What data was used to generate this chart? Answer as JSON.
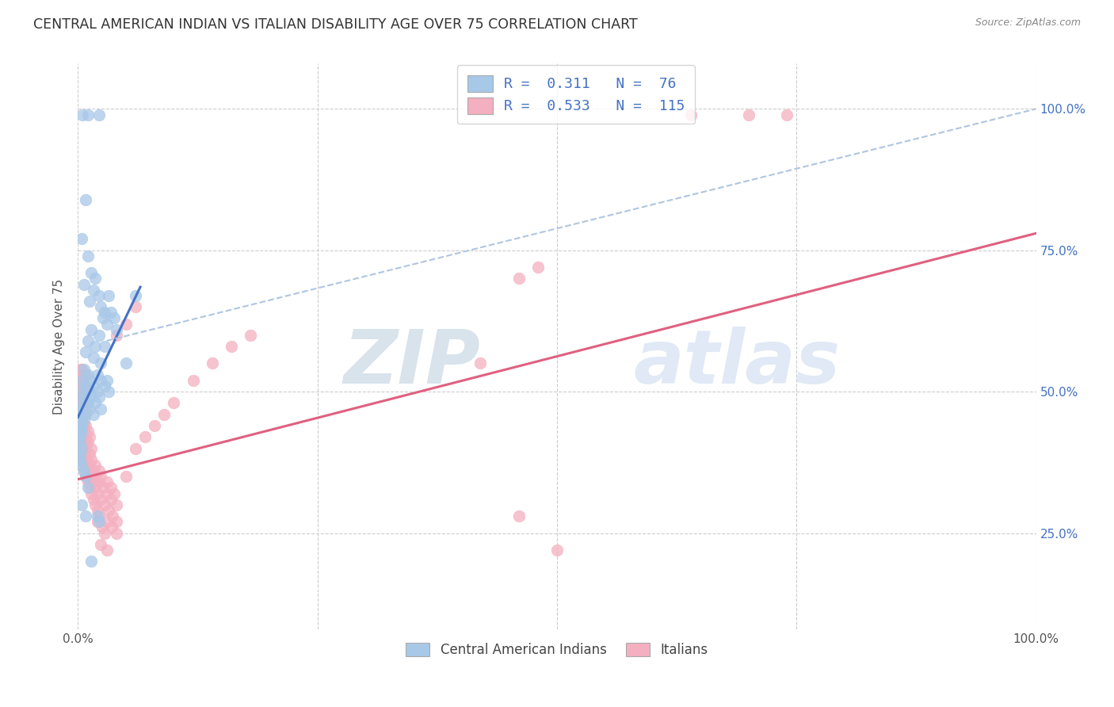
{
  "title": "CENTRAL AMERICAN INDIAN VS ITALIAN DISABILITY AGE OVER 75 CORRELATION CHART",
  "source": "Source: ZipAtlas.com",
  "ylabel": "Disability Age Over 75",
  "legend_labels": [
    "Central American Indians",
    "Italians"
  ],
  "blue_R": "0.311",
  "blue_N": "76",
  "pink_R": "0.533",
  "pink_N": "115",
  "blue_color": "#a8c8e8",
  "pink_color": "#f4b0c0",
  "blue_line_color": "#4472c4",
  "pink_line_color": "#e06080",
  "dashed_line_color": "#aec6e0",
  "right_tick_color": "#4472c4",
  "title_color": "#333333",
  "source_color": "#888888",
  "watermark_zip_color": "#b0c8e0",
  "watermark_atlas_color": "#c8d8ec",
  "blue_scatter": [
    [
      0.005,
      0.99
    ],
    [
      0.01,
      0.99
    ],
    [
      0.022,
      0.99
    ],
    [
      0.008,
      0.84
    ],
    [
      0.004,
      0.77
    ],
    [
      0.01,
      0.74
    ],
    [
      0.014,
      0.71
    ],
    [
      0.018,
      0.7
    ],
    [
      0.006,
      0.69
    ],
    [
      0.016,
      0.68
    ],
    [
      0.022,
      0.67
    ],
    [
      0.032,
      0.67
    ],
    [
      0.012,
      0.66
    ],
    [
      0.024,
      0.65
    ],
    [
      0.028,
      0.64
    ],
    [
      0.034,
      0.64
    ],
    [
      0.026,
      0.63
    ],
    [
      0.038,
      0.63
    ],
    [
      0.03,
      0.62
    ],
    [
      0.014,
      0.61
    ],
    [
      0.022,
      0.6
    ],
    [
      0.04,
      0.61
    ],
    [
      0.01,
      0.59
    ],
    [
      0.018,
      0.58
    ],
    [
      0.028,
      0.58
    ],
    [
      0.008,
      0.57
    ],
    [
      0.016,
      0.56
    ],
    [
      0.024,
      0.55
    ],
    [
      0.006,
      0.54
    ],
    [
      0.01,
      0.53
    ],
    [
      0.02,
      0.53
    ],
    [
      0.004,
      0.52
    ],
    [
      0.012,
      0.52
    ],
    [
      0.024,
      0.52
    ],
    [
      0.008,
      0.51
    ],
    [
      0.016,
      0.51
    ],
    [
      0.028,
      0.51
    ],
    [
      0.004,
      0.5
    ],
    [
      0.012,
      0.5
    ],
    [
      0.02,
      0.5
    ],
    [
      0.032,
      0.5
    ],
    [
      0.006,
      0.49
    ],
    [
      0.014,
      0.49
    ],
    [
      0.022,
      0.49
    ],
    [
      0.002,
      0.48
    ],
    [
      0.01,
      0.48
    ],
    [
      0.018,
      0.48
    ],
    [
      0.004,
      0.47
    ],
    [
      0.012,
      0.47
    ],
    [
      0.024,
      0.47
    ],
    [
      0.002,
      0.46
    ],
    [
      0.008,
      0.46
    ],
    [
      0.016,
      0.46
    ],
    [
      0.002,
      0.45
    ],
    [
      0.006,
      0.45
    ],
    [
      0.002,
      0.44
    ],
    [
      0.004,
      0.44
    ],
    [
      0.002,
      0.43
    ],
    [
      0.002,
      0.42
    ],
    [
      0.002,
      0.41
    ],
    [
      0.004,
      0.4
    ],
    [
      0.002,
      0.39
    ],
    [
      0.03,
      0.52
    ],
    [
      0.06,
      0.67
    ],
    [
      0.05,
      0.55
    ],
    [
      0.002,
      0.38
    ],
    [
      0.004,
      0.37
    ],
    [
      0.006,
      0.36
    ],
    [
      0.008,
      0.35
    ],
    [
      0.01,
      0.33
    ],
    [
      0.004,
      0.3
    ],
    [
      0.008,
      0.28
    ],
    [
      0.02,
      0.28
    ],
    [
      0.022,
      0.27
    ],
    [
      0.014,
      0.2
    ],
    [
      0.002,
      0.43
    ],
    [
      0.004,
      0.43
    ]
  ],
  "pink_scatter": [
    [
      0.002,
      0.54
    ],
    [
      0.004,
      0.54
    ],
    [
      0.006,
      0.53
    ],
    [
      0.008,
      0.53
    ],
    [
      0.002,
      0.52
    ],
    [
      0.004,
      0.52
    ],
    [
      0.006,
      0.51
    ],
    [
      0.002,
      0.51
    ],
    [
      0.004,
      0.5
    ],
    [
      0.008,
      0.5
    ],
    [
      0.002,
      0.49
    ],
    [
      0.004,
      0.49
    ],
    [
      0.006,
      0.48
    ],
    [
      0.002,
      0.48
    ],
    [
      0.004,
      0.47
    ],
    [
      0.008,
      0.47
    ],
    [
      0.002,
      0.46
    ],
    [
      0.004,
      0.46
    ],
    [
      0.006,
      0.46
    ],
    [
      0.002,
      0.45
    ],
    [
      0.004,
      0.45
    ],
    [
      0.006,
      0.44
    ],
    [
      0.008,
      0.44
    ],
    [
      0.002,
      0.44
    ],
    [
      0.004,
      0.43
    ],
    [
      0.006,
      0.43
    ],
    [
      0.01,
      0.43
    ],
    [
      0.002,
      0.42
    ],
    [
      0.004,
      0.42
    ],
    [
      0.008,
      0.42
    ],
    [
      0.012,
      0.42
    ],
    [
      0.002,
      0.41
    ],
    [
      0.004,
      0.41
    ],
    [
      0.006,
      0.41
    ],
    [
      0.01,
      0.41
    ],
    [
      0.002,
      0.4
    ],
    [
      0.004,
      0.4
    ],
    [
      0.008,
      0.4
    ],
    [
      0.014,
      0.4
    ],
    [
      0.002,
      0.39
    ],
    [
      0.004,
      0.39
    ],
    [
      0.006,
      0.39
    ],
    [
      0.012,
      0.39
    ],
    [
      0.002,
      0.38
    ],
    [
      0.004,
      0.38
    ],
    [
      0.008,
      0.38
    ],
    [
      0.014,
      0.38
    ],
    [
      0.004,
      0.37
    ],
    [
      0.008,
      0.37
    ],
    [
      0.012,
      0.37
    ],
    [
      0.018,
      0.37
    ],
    [
      0.006,
      0.36
    ],
    [
      0.01,
      0.36
    ],
    [
      0.016,
      0.36
    ],
    [
      0.022,
      0.36
    ],
    [
      0.008,
      0.35
    ],
    [
      0.012,
      0.35
    ],
    [
      0.018,
      0.35
    ],
    [
      0.024,
      0.35
    ],
    [
      0.01,
      0.34
    ],
    [
      0.016,
      0.34
    ],
    [
      0.022,
      0.34
    ],
    [
      0.03,
      0.34
    ],
    [
      0.012,
      0.33
    ],
    [
      0.018,
      0.33
    ],
    [
      0.026,
      0.33
    ],
    [
      0.034,
      0.33
    ],
    [
      0.014,
      0.32
    ],
    [
      0.02,
      0.32
    ],
    [
      0.03,
      0.32
    ],
    [
      0.038,
      0.32
    ],
    [
      0.016,
      0.31
    ],
    [
      0.024,
      0.31
    ],
    [
      0.034,
      0.31
    ],
    [
      0.018,
      0.3
    ],
    [
      0.028,
      0.3
    ],
    [
      0.04,
      0.3
    ],
    [
      0.02,
      0.29
    ],
    [
      0.032,
      0.29
    ],
    [
      0.022,
      0.28
    ],
    [
      0.036,
      0.28
    ],
    [
      0.02,
      0.27
    ],
    [
      0.03,
      0.27
    ],
    [
      0.04,
      0.27
    ],
    [
      0.025,
      0.26
    ],
    [
      0.035,
      0.26
    ],
    [
      0.028,
      0.25
    ],
    [
      0.04,
      0.25
    ],
    [
      0.05,
      0.35
    ],
    [
      0.06,
      0.4
    ],
    [
      0.07,
      0.42
    ],
    [
      0.08,
      0.44
    ],
    [
      0.09,
      0.46
    ],
    [
      0.1,
      0.48
    ],
    [
      0.12,
      0.52
    ],
    [
      0.14,
      0.55
    ],
    [
      0.16,
      0.58
    ],
    [
      0.18,
      0.6
    ],
    [
      0.04,
      0.6
    ],
    [
      0.05,
      0.62
    ],
    [
      0.06,
      0.65
    ],
    [
      0.46,
      0.7
    ],
    [
      0.48,
      0.72
    ],
    [
      0.64,
      0.99
    ],
    [
      0.7,
      0.99
    ],
    [
      0.74,
      0.99
    ],
    [
      0.024,
      0.23
    ],
    [
      0.03,
      0.22
    ],
    [
      0.42,
      0.55
    ],
    [
      0.46,
      0.28
    ],
    [
      0.5,
      0.22
    ]
  ],
  "xlim": [
    0.0,
    1.0
  ],
  "ylim": [
    0.08,
    1.08
  ],
  "yticks": [
    0.25,
    0.5,
    0.75,
    1.0
  ],
  "ytick_labels_right": [
    "25.0%",
    "50.0%",
    "75.0%",
    "100.0%"
  ],
  "xtick_positions": [
    0.0,
    0.25,
    0.5,
    0.75,
    1.0
  ],
  "xtick_labels": [
    "0.0%",
    "",
    "",
    "",
    "100.0%"
  ],
  "blue_trendline": [
    [
      0.0,
      0.455
    ],
    [
      0.065,
      0.685
    ]
  ],
  "pink_trendline": [
    [
      0.0,
      0.345
    ],
    [
      1.0,
      0.78
    ]
  ],
  "dashed_trendline": [
    [
      0.03,
      0.59
    ],
    [
      1.0,
      1.0
    ]
  ]
}
